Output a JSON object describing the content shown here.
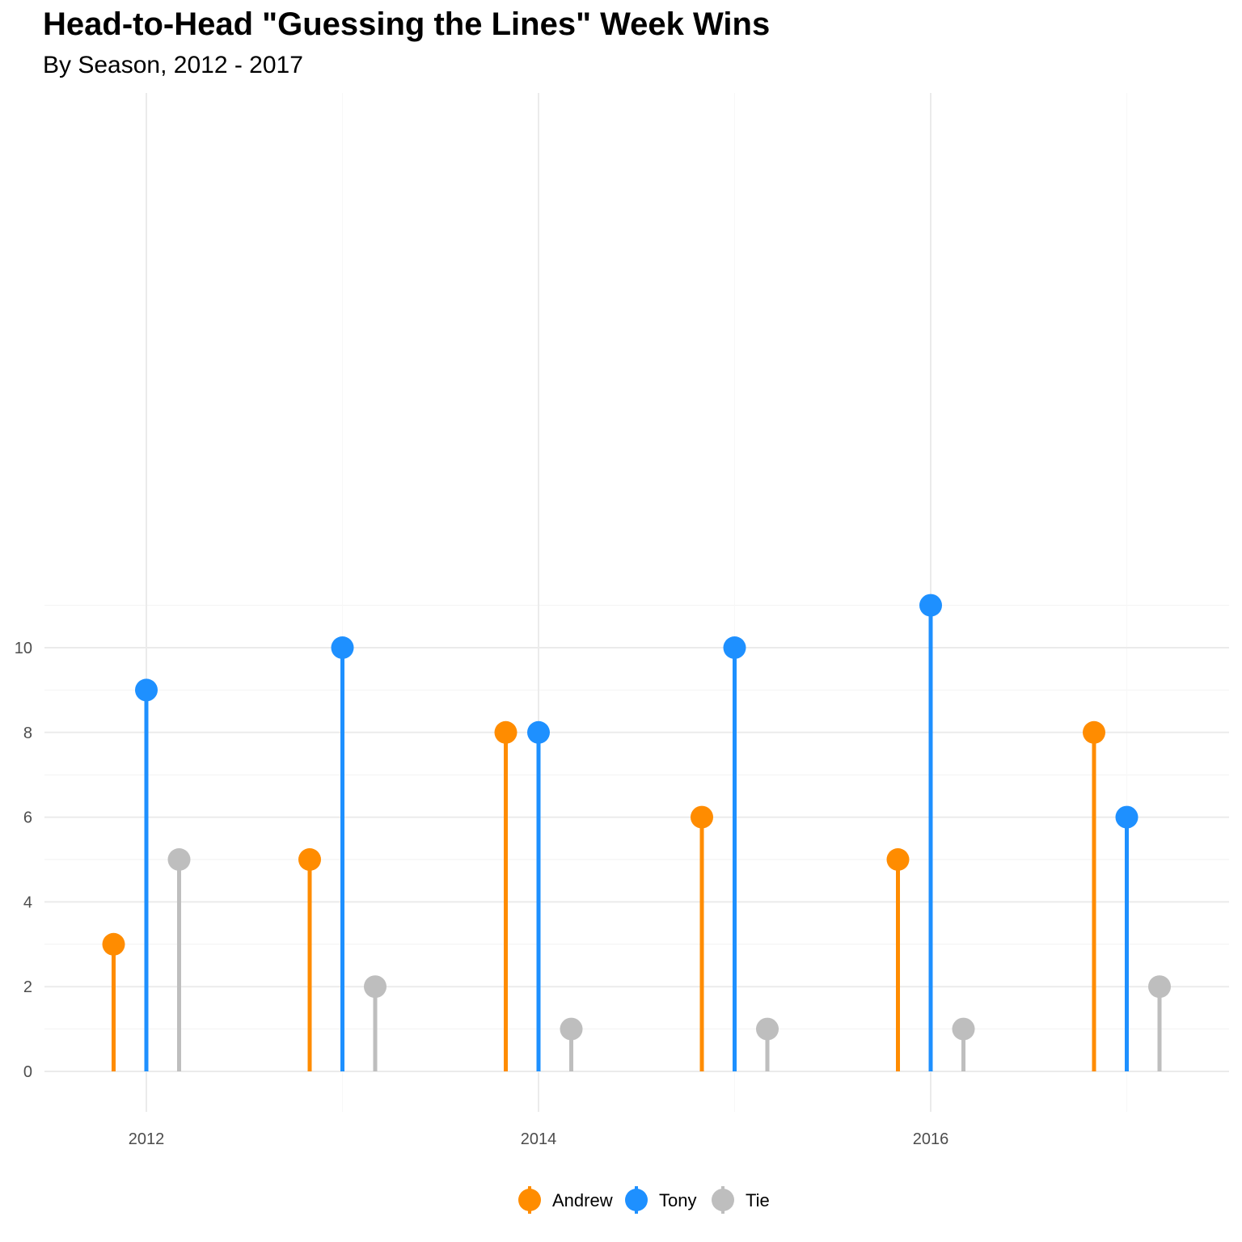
{
  "chart_data": {
    "type": "lollipop",
    "title": "Head-to-Head \"Guessing the Lines\" Week Wins",
    "subtitle": "By Season, 2012 - 2017",
    "xlabel": "",
    "ylabel": "",
    "x_ticks": [
      2012,
      2014,
      2016
    ],
    "y_ticks": [
      0,
      2,
      4,
      6,
      8,
      10
    ],
    "xlim": [
      2011.5,
      2017.5
    ],
    "ylim": [
      0,
      11
    ],
    "grid": true,
    "legend_position": "bottom",
    "categories": [
      2012,
      2013,
      2014,
      2015,
      2016,
      2017
    ],
    "series": [
      {
        "name": "Andrew",
        "color": "#FF8C00",
        "values": [
          3,
          5,
          8,
          6,
          5,
          8
        ]
      },
      {
        "name": "Tony",
        "color": "#1E90FF",
        "values": [
          9,
          10,
          8,
          10,
          11,
          6
        ]
      },
      {
        "name": "Tie",
        "color": "#BEBEBE",
        "values": [
          5,
          2,
          1,
          1,
          1,
          2
        ]
      }
    ]
  }
}
